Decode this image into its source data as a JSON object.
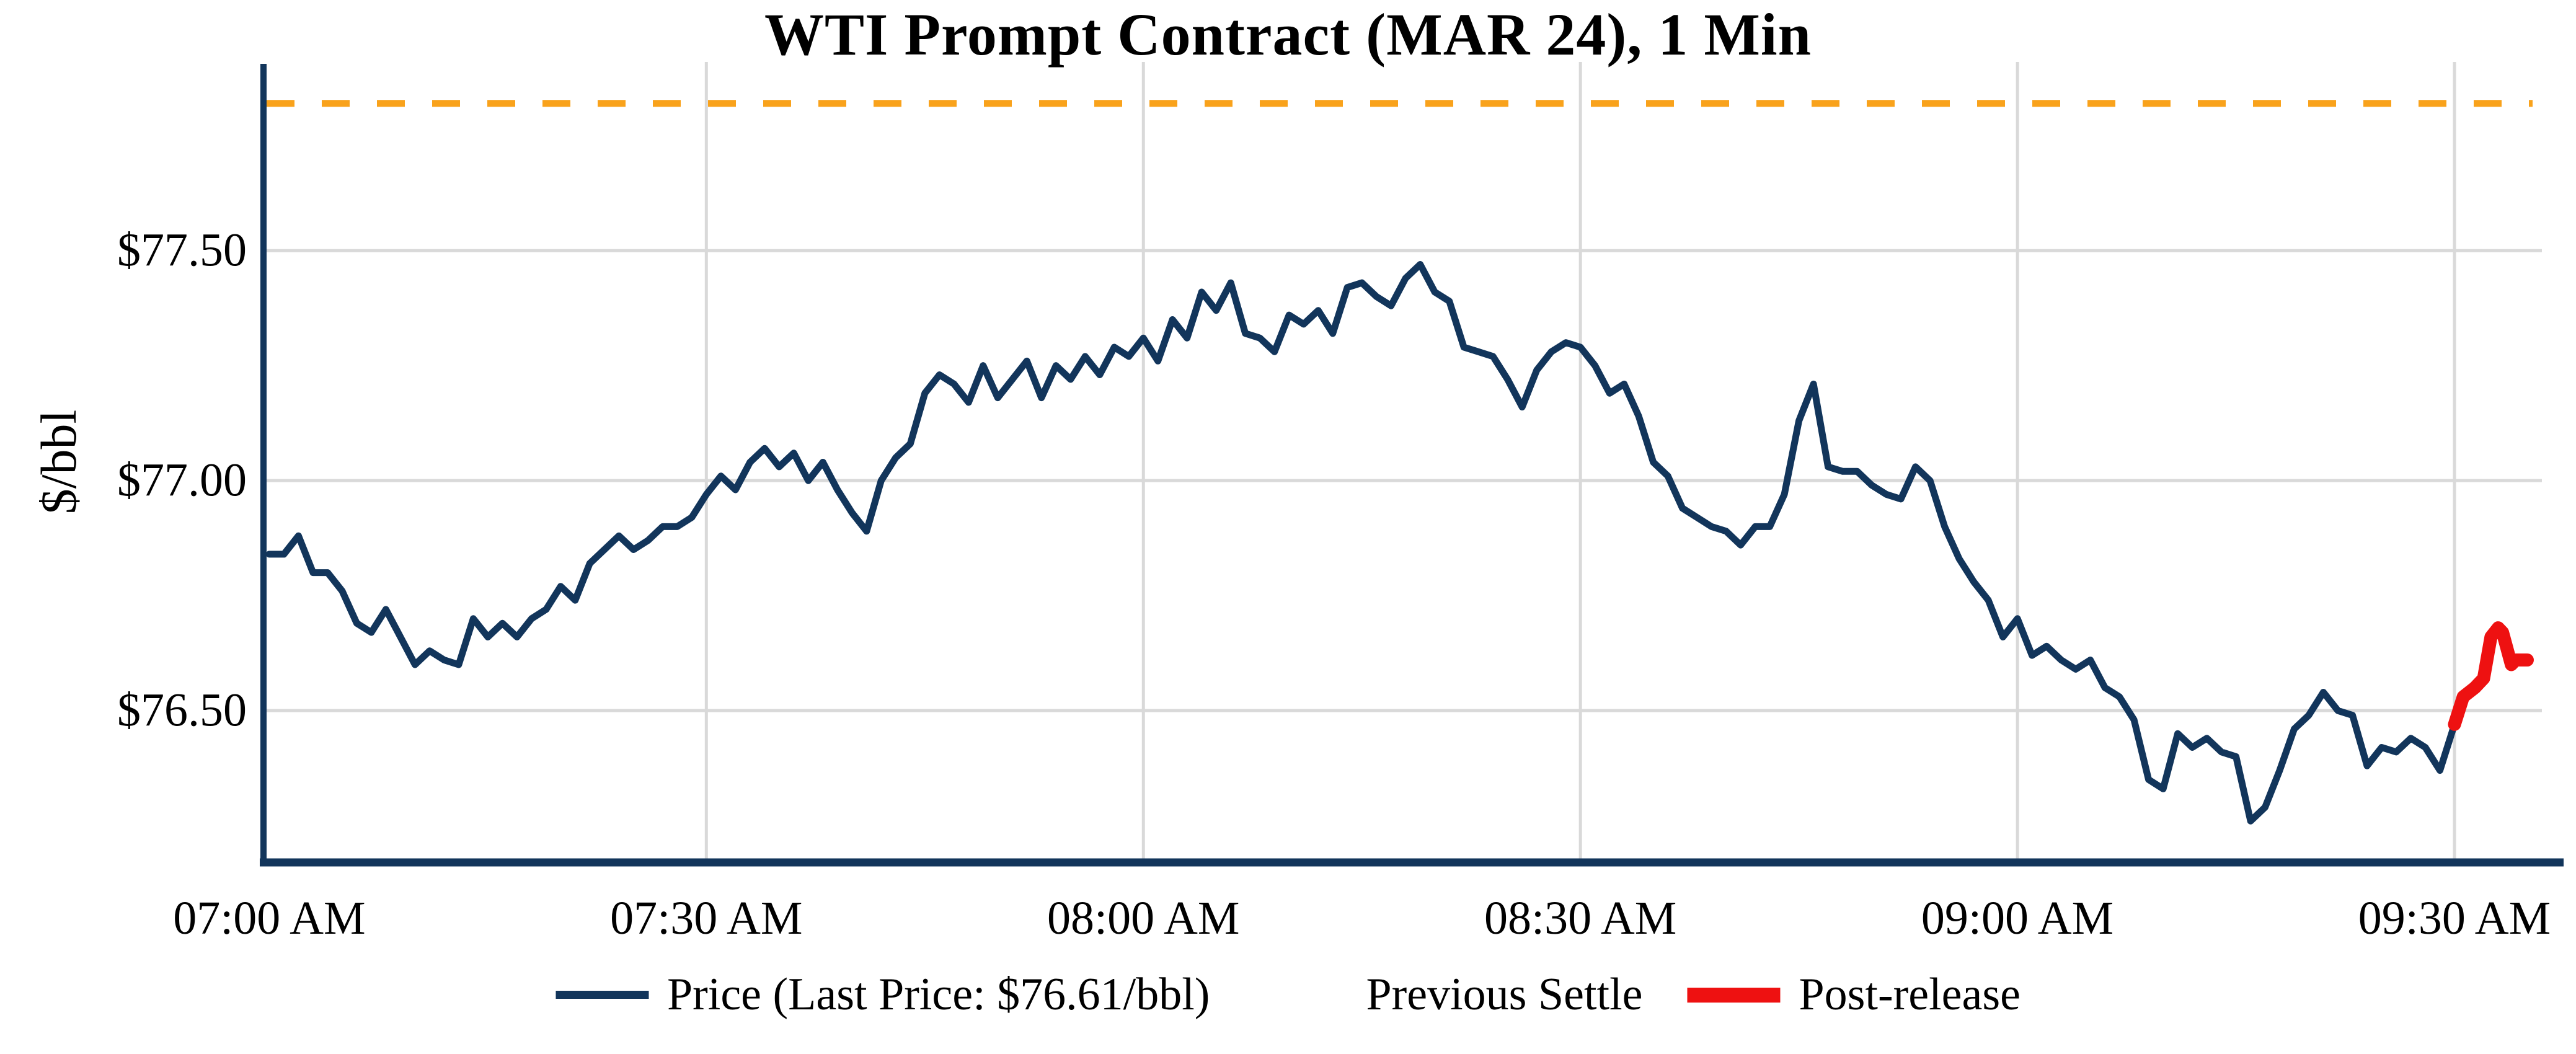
{
  "chart_data": {
    "type": "line",
    "title": "WTI Prompt Contract (MAR 24), 1 Min",
    "xlabel": "",
    "ylabel": "$/bbl",
    "grid": true,
    "legend_position": "bottom-center",
    "ylim": [
      76.17,
      77.91
    ],
    "xlim_minutes": [
      -0.4,
      156
    ],
    "x_start_time": "07:00 AM",
    "x_end_time": "09:36 AM",
    "previous_settle": 77.82,
    "last_price": 76.61,
    "x_ticks": [
      {
        "minute": 0,
        "label": "07:00 AM"
      },
      {
        "minute": 30,
        "label": "07:30 AM"
      },
      {
        "minute": 60,
        "label": "08:00 AM"
      },
      {
        "minute": 90,
        "label": "08:30 AM"
      },
      {
        "minute": 120,
        "label": "09:00 AM"
      },
      {
        "minute": 150,
        "label": "09:30 AM"
      }
    ],
    "y_ticks": [
      {
        "value": 76.5,
        "label": "$76.50"
      },
      {
        "value": 77.0,
        "label": "$77.00"
      },
      {
        "value": 77.5,
        "label": "$77.50"
      }
    ],
    "series": [
      {
        "name": "Price (Last Price: $76.61/bbl)",
        "kind": "line",
        "color": "#12355b",
        "stroke_width": 11,
        "x_minutes": [
          0,
          1,
          2,
          3,
          4,
          5,
          6,
          7,
          8,
          9,
          10,
          11,
          12,
          13,
          14,
          15,
          16,
          17,
          18,
          19,
          20,
          21,
          22,
          23,
          24,
          25,
          26,
          27,
          28,
          29,
          30,
          31,
          32,
          33,
          34,
          35,
          36,
          37,
          38,
          39,
          40,
          41,
          42,
          43,
          44,
          45,
          46,
          47,
          48,
          49,
          50,
          51,
          52,
          53,
          54,
          55,
          56,
          57,
          58,
          59,
          60,
          61,
          62,
          63,
          64,
          65,
          66,
          67,
          68,
          69,
          70,
          71,
          72,
          73,
          74,
          75,
          76,
          77,
          78,
          79,
          80,
          81,
          82,
          83,
          84,
          85,
          86,
          87,
          88,
          89,
          90,
          91,
          92,
          93,
          94,
          95,
          96,
          97,
          98,
          99,
          100,
          101,
          102,
          103,
          104,
          105,
          106,
          107,
          108,
          109,
          110,
          111,
          112,
          113,
          114,
          115,
          116,
          117,
          118,
          119,
          120,
          121,
          122,
          123,
          124,
          125,
          126,
          127,
          128,
          129,
          130,
          131,
          132,
          133,
          134,
          135,
          136,
          137,
          138,
          139,
          140,
          141,
          142,
          143,
          144,
          145,
          146,
          147,
          148,
          149,
          150
        ],
        "values": [
          76.84,
          76.84,
          76.88,
          76.8,
          76.8,
          76.76,
          76.69,
          76.67,
          76.72,
          76.66,
          76.6,
          76.63,
          76.61,
          76.6,
          76.7,
          76.66,
          76.69,
          76.66,
          76.7,
          76.72,
          76.77,
          76.74,
          76.82,
          76.85,
          76.88,
          76.85,
          76.87,
          76.9,
          76.9,
          76.92,
          76.97,
          77.01,
          76.98,
          77.04,
          77.07,
          77.03,
          77.06,
          77.0,
          77.04,
          76.98,
          76.93,
          76.89,
          77.0,
          77.05,
          77.08,
          77.19,
          77.23,
          77.21,
          77.17,
          77.25,
          77.18,
          77.22,
          77.26,
          77.18,
          77.25,
          77.22,
          77.27,
          77.23,
          77.29,
          77.27,
          77.31,
          77.26,
          77.35,
          77.31,
          77.41,
          77.37,
          77.43,
          77.32,
          77.31,
          77.28,
          77.36,
          77.34,
          77.37,
          77.32,
          77.42,
          77.43,
          77.4,
          77.38,
          77.44,
          77.47,
          77.41,
          77.39,
          77.29,
          77.28,
          77.27,
          77.22,
          77.16,
          77.24,
          77.28,
          77.3,
          77.29,
          77.25,
          77.19,
          77.21,
          77.14,
          77.04,
          77.01,
          76.94,
          76.92,
          76.9,
          76.89,
          76.86,
          76.9,
          76.9,
          76.97,
          77.13,
          77.21,
          77.03,
          77.02,
          77.02,
          76.99,
          76.97,
          76.96,
          77.03,
          77.0,
          76.9,
          76.83,
          76.78,
          76.74,
          76.66,
          76.7,
          76.62,
          76.64,
          76.61,
          76.59,
          76.61,
          76.55,
          76.53,
          76.48,
          76.35,
          76.33,
          76.45,
          76.42,
          76.44,
          76.41,
          76.4,
          76.26,
          76.29,
          76.37,
          76.46,
          76.49,
          76.54,
          76.5,
          76.49,
          76.38,
          76.42,
          76.41,
          76.44,
          76.42,
          76.37,
          76.47
        ]
      },
      {
        "name": "Previous Settle",
        "kind": "hline",
        "style": "dashed",
        "color": "#f9a21b",
        "stroke_width": 11,
        "value": 77.82
      },
      {
        "name": "Post-release",
        "kind": "line",
        "color": "#ee1111",
        "stroke_width": 21,
        "x_minutes": [
          150,
          150.6,
          151.4,
          152.0,
          152.5,
          153.0,
          153.3,
          153.9,
          154.2,
          155
        ],
        "values": [
          76.47,
          76.53,
          76.55,
          76.57,
          76.66,
          76.68,
          76.67,
          76.6,
          76.61,
          76.61
        ]
      }
    ],
    "legend": {
      "items": [
        {
          "label": "Price (Last Price: $76.61/bbl)",
          "swatch": "solid",
          "color": "#12355b"
        },
        {
          "label": "Previous Settle",
          "swatch": "dashed",
          "color": "#f9a21b"
        },
        {
          "label": "Post-release",
          "swatch": "thick",
          "color": "#ee1111"
        }
      ]
    },
    "colors": {
      "price": "#12355b",
      "previous_settle": "#f9a21b",
      "post_release": "#ee1111",
      "gridline": "#d9d9d9",
      "axis_spine": "#12355b",
      "text": "#000000",
      "background": "#ffffff"
    }
  }
}
